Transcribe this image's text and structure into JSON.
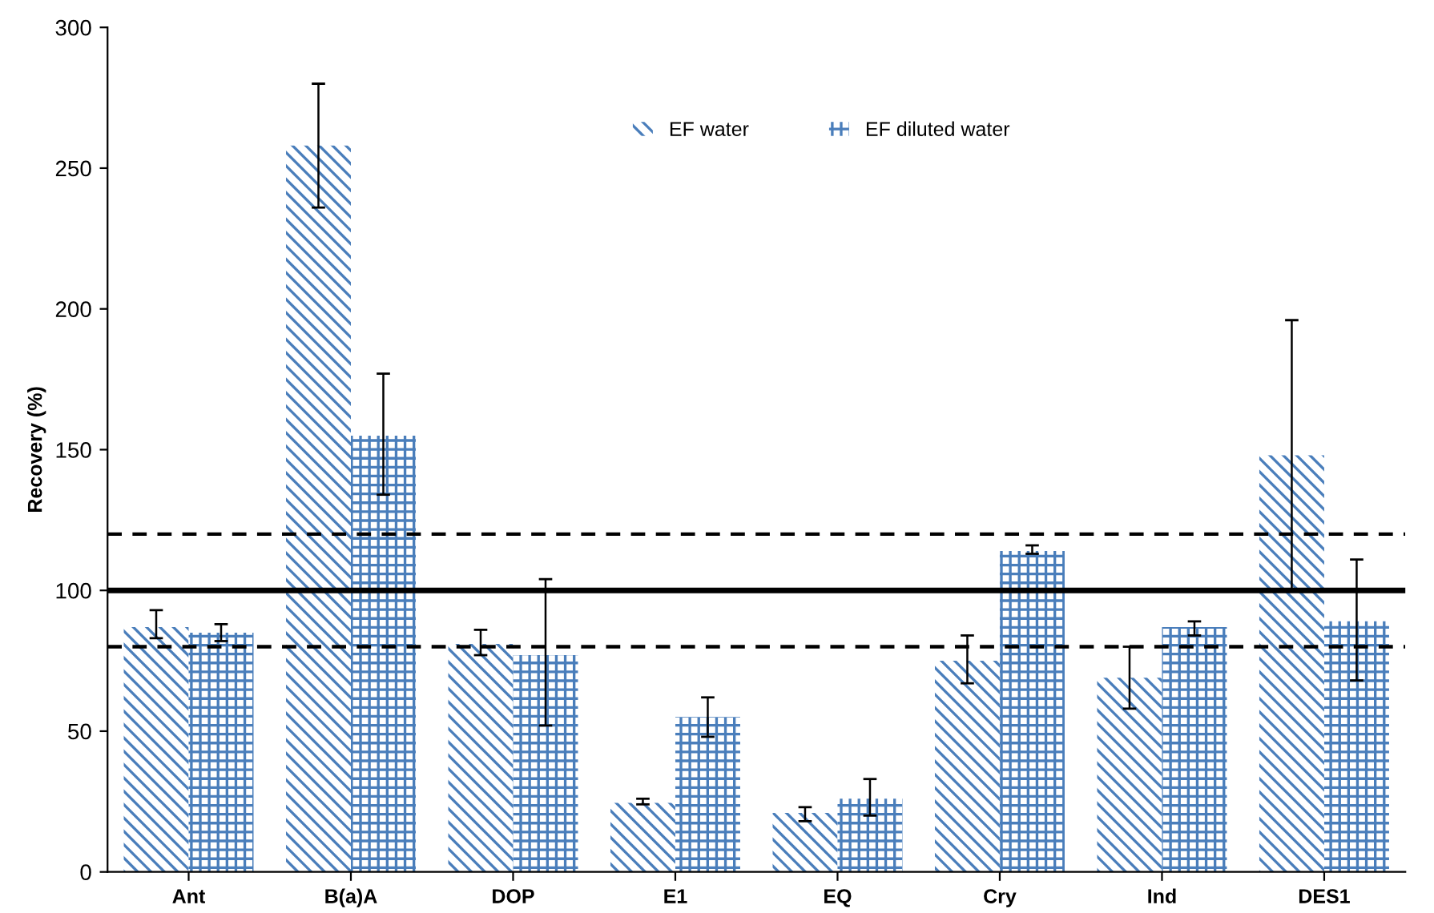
{
  "chart_data": {
    "type": "bar",
    "ylabel": "Recovery (%)",
    "categories": [
      "Ant",
      "B(a)A",
      "DOP",
      "E1",
      "EQ",
      "Cry",
      "Ind",
      "DES1"
    ],
    "series": [
      {
        "name": "EF water",
        "color": "#4a7ebb",
        "values": [
          87,
          258,
          81,
          24.5,
          21,
          75,
          69,
          148
        ],
        "errors": [
          [
            83,
            93
          ],
          [
            236,
            280
          ],
          [
            77,
            86
          ],
          [
            24,
            26
          ],
          [
            18,
            23
          ],
          [
            67,
            84
          ],
          [
            58,
            80
          ],
          [
            100,
            196
          ]
        ]
      },
      {
        "name": "EF diluted water",
        "color": "#4a7ebb",
        "values": [
          85,
          155,
          77,
          55,
          26,
          114,
          87,
          89
        ],
        "errors": [
          [
            82,
            88
          ],
          [
            134,
            177
          ],
          [
            52,
            104
          ],
          [
            48,
            62
          ],
          [
            20,
            33
          ],
          [
            113,
            116
          ],
          [
            84,
            89
          ],
          [
            68,
            111
          ]
        ]
      }
    ],
    "ylim": [
      0,
      300
    ],
    "yticks": [
      0,
      50,
      100,
      150,
      200,
      250,
      300
    ],
    "ref_lines": [
      {
        "axis": "y",
        "value": 100,
        "line_style": "solid",
        "color": "#000000"
      },
      {
        "axis": "y",
        "value": 120,
        "line_style": "dashed",
        "color": "#000000"
      },
      {
        "axis": "y",
        "value": 80,
        "line_style": "dashed",
        "color": "#000000"
      }
    ],
    "grid": false,
    "legend": "top"
  }
}
